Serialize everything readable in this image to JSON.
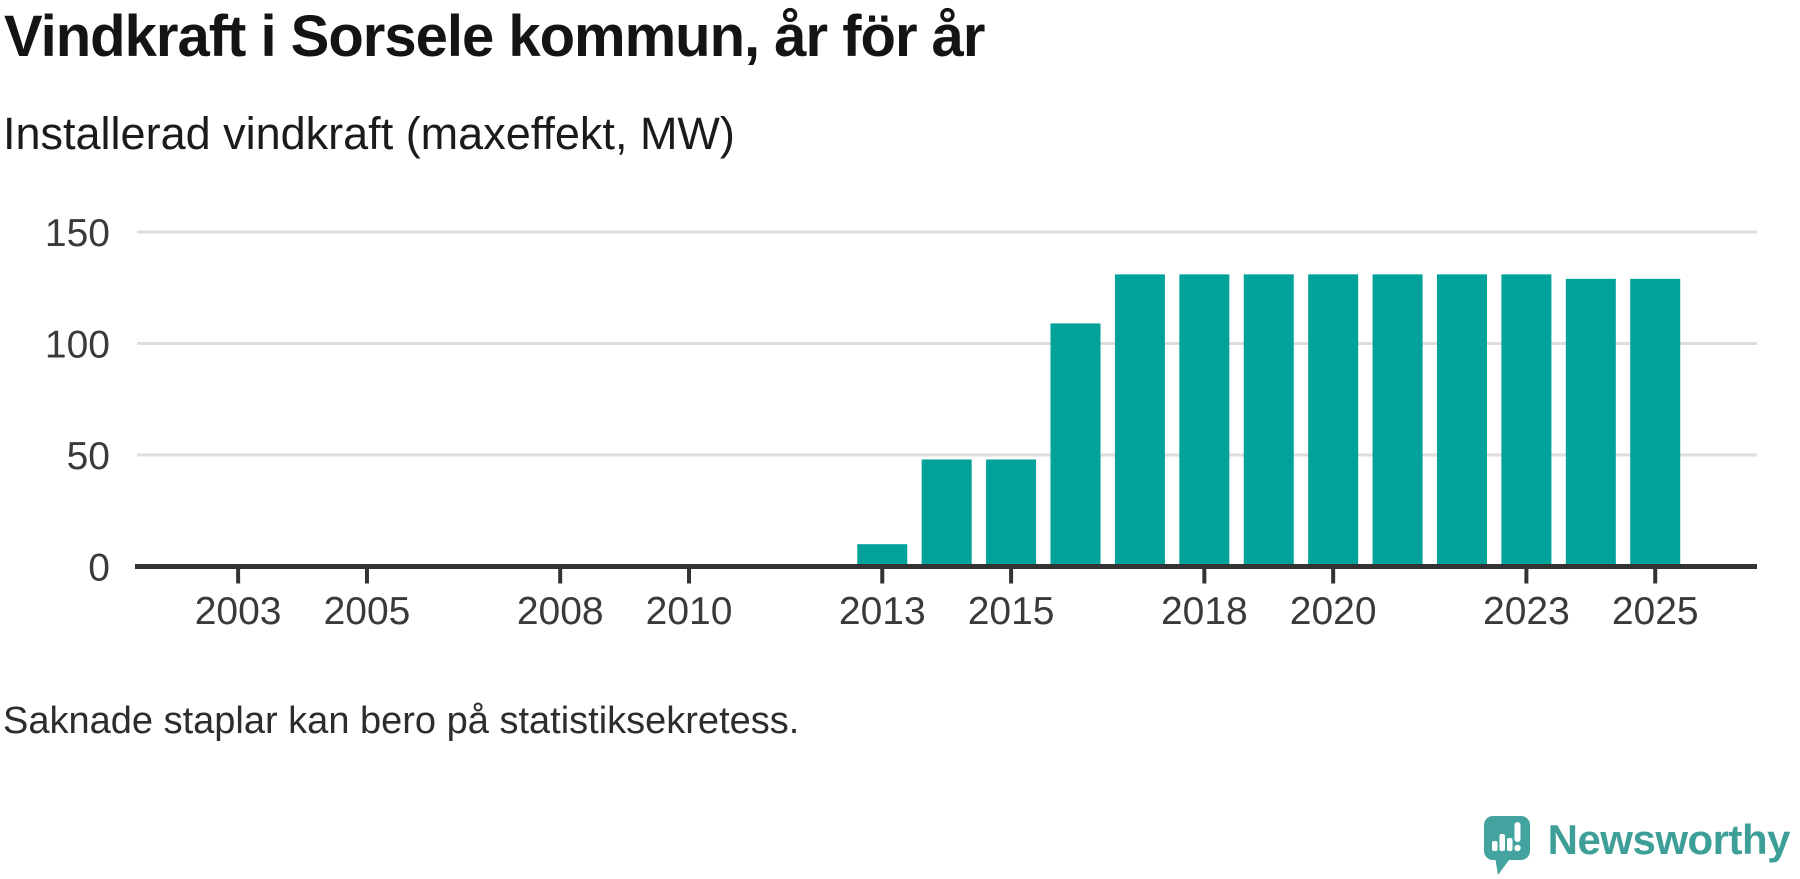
{
  "header": {
    "title": "Vindkraft i Sorsele kommun, år för år",
    "subtitle": "Installerad vindkraft (maxeffekt, MW)"
  },
  "footer": {
    "note": "Saknade staplar kan bero på statistiksekretess.",
    "brand": "Newsworthy"
  },
  "colors": {
    "bar": "#00a29a",
    "axis": "#333333",
    "grid": "#dddddd",
    "tick_label": "#3a3a3a",
    "logo_icon": "#43a39e",
    "logo_text": "#3d9f97"
  },
  "chart_data": {
    "type": "bar",
    "title": "Vindkraft i Sorsele kommun, år för år",
    "subtitle": "Installerad vindkraft (maxeffekt, MW)",
    "ylabel": "Installerad vindkraft (maxeffekt, MW)",
    "unit": "MW",
    "x": [
      2013,
      2014,
      2015,
      2016,
      2017,
      2018,
      2019,
      2020,
      2021,
      2022,
      2023,
      2024,
      2025
    ],
    "values": [
      10,
      48,
      48,
      109,
      131,
      131,
      131,
      131,
      131,
      131,
      131,
      129,
      129
    ],
    "x_ticks": [
      2003,
      2005,
      2008,
      2010,
      2013,
      2015,
      2018,
      2020,
      2023,
      2025
    ],
    "x_tick_labels": [
      "2003",
      "2005",
      "2008",
      "2010",
      "2013",
      "2015",
      "2018",
      "2020",
      "2023",
      "2025"
    ],
    "y_ticks": [
      0,
      50,
      100,
      150
    ],
    "y_tick_labels": [
      "0",
      "50",
      "100",
      "150"
    ],
    "ylim": [
      0,
      150
    ],
    "xlim": [
      2001.43,
      2026.58
    ],
    "grid": "horizontal",
    "legend": "none",
    "note": "Saknade staplar kan bero på statistiksekretess."
  }
}
